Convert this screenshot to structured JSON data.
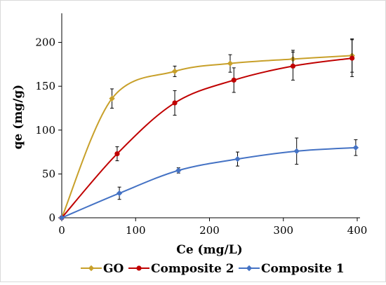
{
  "chart_data": {
    "type": "scatter",
    "xlabel": "Ce (mg/L)",
    "ylabel": "qe (mg/g)",
    "xlim": [
      0,
      400
    ],
    "ylim": [
      0,
      230
    ],
    "xticks": [
      0,
      100,
      200,
      300,
      400
    ],
    "yticks": [
      0,
      50,
      100,
      150,
      200
    ],
    "grid": false,
    "legend_position": "bottom",
    "smooth_lines": true,
    "error_bars": true,
    "series": [
      {
        "name": "GO",
        "color": "#C8A02A",
        "marker": "diamond",
        "points": [
          {
            "x": 0,
            "y": 0,
            "err": 0
          },
          {
            "x": 68,
            "y": 136,
            "err": 11
          },
          {
            "x": 153,
            "y": 167,
            "err": 6
          },
          {
            "x": 228,
            "y": 176,
            "err": 10
          },
          {
            "x": 313,
            "y": 181,
            "err": 10
          },
          {
            "x": 393,
            "y": 185,
            "err": 19
          }
        ]
      },
      {
        "name": "Composite 2",
        "color": "#C00000",
        "marker": "circle",
        "points": [
          {
            "x": 0,
            "y": 0,
            "err": 0
          },
          {
            "x": 75,
            "y": 73,
            "err": 8
          },
          {
            "x": 153,
            "y": 131,
            "err": 14
          },
          {
            "x": 233,
            "y": 157,
            "err": 14
          },
          {
            "x": 313,
            "y": 173,
            "err": 16
          },
          {
            "x": 393,
            "y": 182,
            "err": 21
          }
        ]
      },
      {
        "name": "Composite 1",
        "color": "#4472C4",
        "marker": "diamond",
        "points": [
          {
            "x": 0,
            "y": 0,
            "err": 0
          },
          {
            "x": 78,
            "y": 28,
            "err": 7
          },
          {
            "x": 158,
            "y": 54,
            "err": 3
          },
          {
            "x": 238,
            "y": 67,
            "err": 8
          },
          {
            "x": 318,
            "y": 76,
            "err": 15
          },
          {
            "x": 398,
            "y": 80,
            "err": 9
          }
        ]
      }
    ]
  }
}
